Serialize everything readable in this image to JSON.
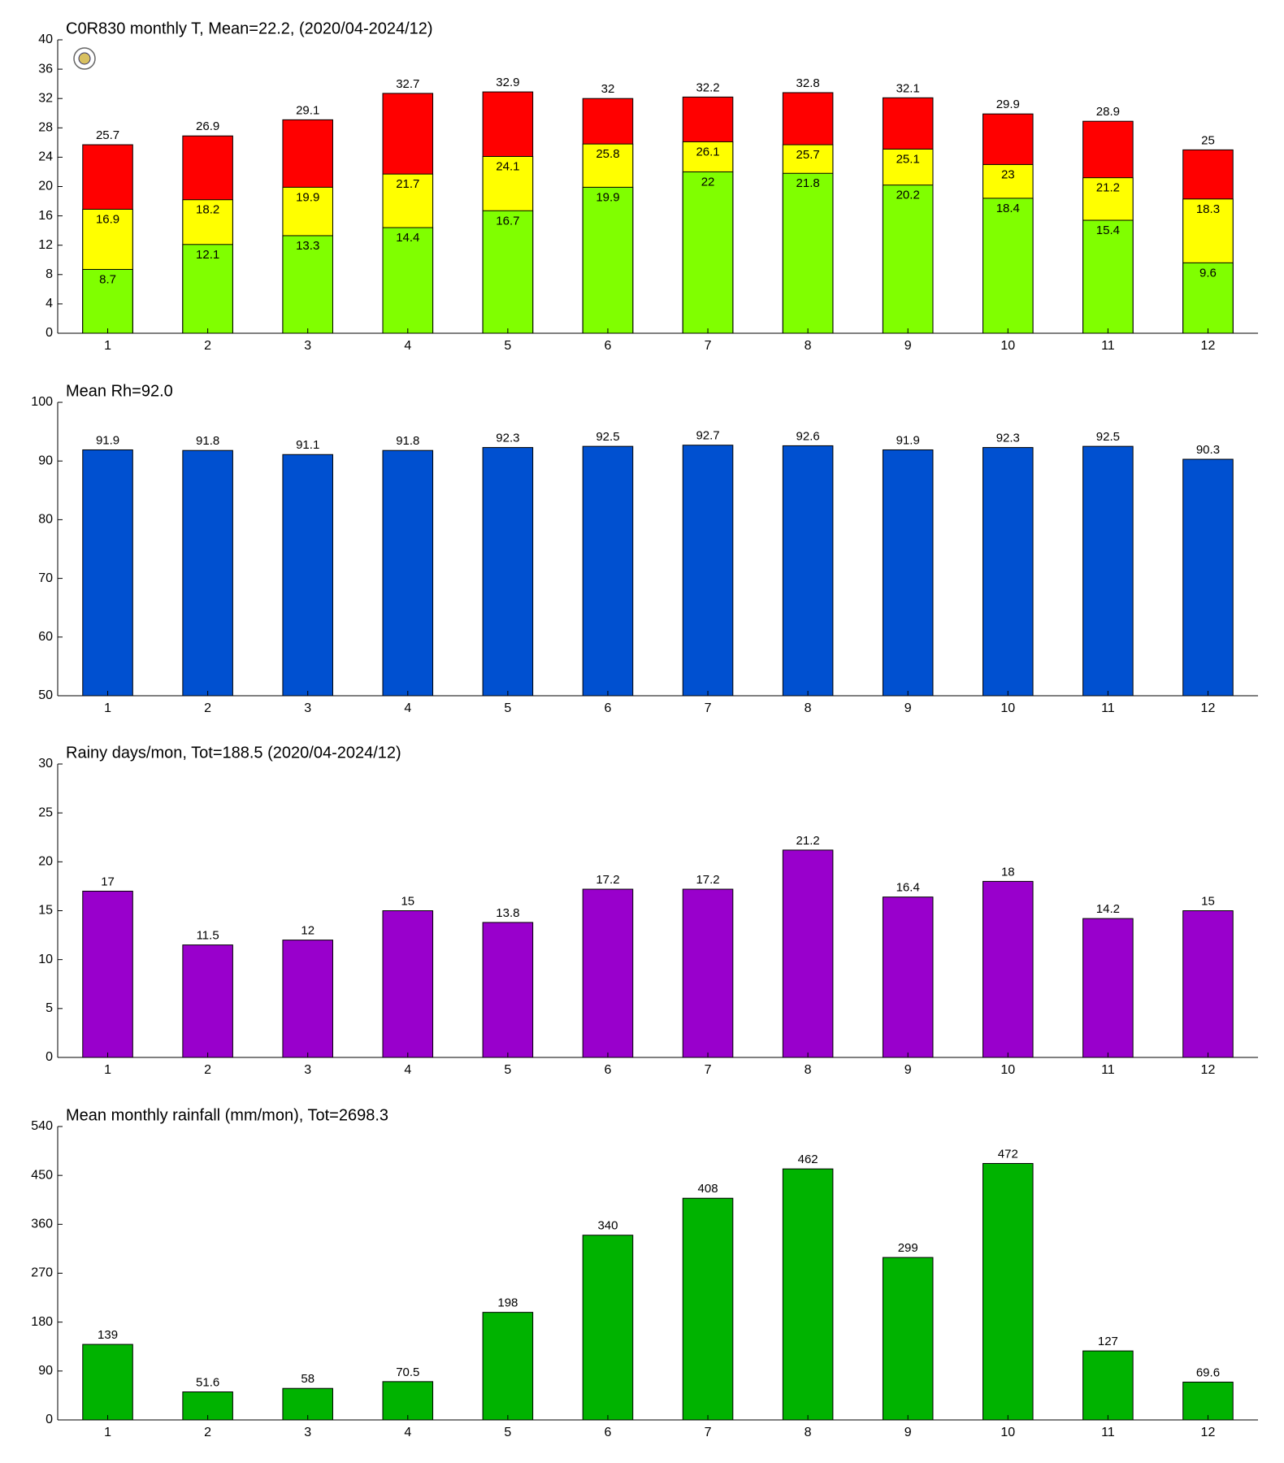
{
  "chart_data": [
    {
      "type": "overlay_bar",
      "title": "C0R830 monthly T, Mean=22.2, (2020/04-2024/12)",
      "categories": [
        "1",
        "2",
        "3",
        "4",
        "5",
        "6",
        "7",
        "8",
        "9",
        "10",
        "11",
        "12"
      ],
      "series": [
        {
          "color": "#80ff00",
          "values": [
            8.7,
            12.1,
            13.3,
            14.4,
            16.7,
            19.9,
            22,
            21.8,
            20.2,
            18.4,
            15.4,
            9.6
          ]
        },
        {
          "color": "#ffff00",
          "values": [
            16.9,
            18.2,
            19.9,
            21.7,
            24.1,
            25.8,
            26.1,
            25.7,
            25.1,
            23,
            21.2,
            18.3
          ]
        },
        {
          "color": "#ff0000",
          "values": [
            25.7,
            26.9,
            29.1,
            32.7,
            32.9,
            32,
            32.2,
            32.8,
            32.1,
            29.9,
            28.9,
            25
          ]
        }
      ],
      "ylim": [
        0,
        40
      ],
      "yticks": [
        0,
        4,
        8,
        12,
        16,
        20,
        24,
        28,
        32,
        36,
        40
      ]
    },
    {
      "type": "bar",
      "title": "Mean Rh=92.0",
      "categories": [
        "1",
        "2",
        "3",
        "4",
        "5",
        "6",
        "7",
        "8",
        "9",
        "10",
        "11",
        "12"
      ],
      "values": [
        91.9,
        91.8,
        91.1,
        91.8,
        92.3,
        92.5,
        92.7,
        92.6,
        91.9,
        92.3,
        92.5,
        90.3
      ],
      "color": "#0050d0",
      "ylim": [
        50,
        100
      ],
      "yticks": [
        50,
        60,
        70,
        80,
        90,
        100
      ]
    },
    {
      "type": "bar",
      "title": "Rainy days/mon, Tot=188.5 (2020/04-2024/12)",
      "categories": [
        "1",
        "2",
        "3",
        "4",
        "5",
        "6",
        "7",
        "8",
        "9",
        "10",
        "11",
        "12"
      ],
      "values": [
        17,
        11.5,
        12,
        15,
        13.8,
        17.2,
        17.2,
        21.2,
        16.4,
        18,
        14.2,
        15
      ],
      "color": "#9900cc",
      "ylim": [
        0,
        30
      ],
      "yticks": [
        0,
        5,
        10,
        15,
        20,
        25,
        30
      ]
    },
    {
      "type": "bar",
      "title": "Mean monthly rainfall (mm/mon), Tot=2698.3",
      "categories": [
        "1",
        "2",
        "3",
        "4",
        "5",
        "6",
        "7",
        "8",
        "9",
        "10",
        "11",
        "12"
      ],
      "values": [
        139,
        51.6,
        58,
        70.5,
        198,
        340,
        408,
        462,
        299,
        472,
        127,
        69.6
      ],
      "color": "#00b300",
      "ylim": [
        0,
        540
      ],
      "yticks": [
        0,
        90,
        180,
        270,
        360,
        450,
        540
      ]
    }
  ]
}
